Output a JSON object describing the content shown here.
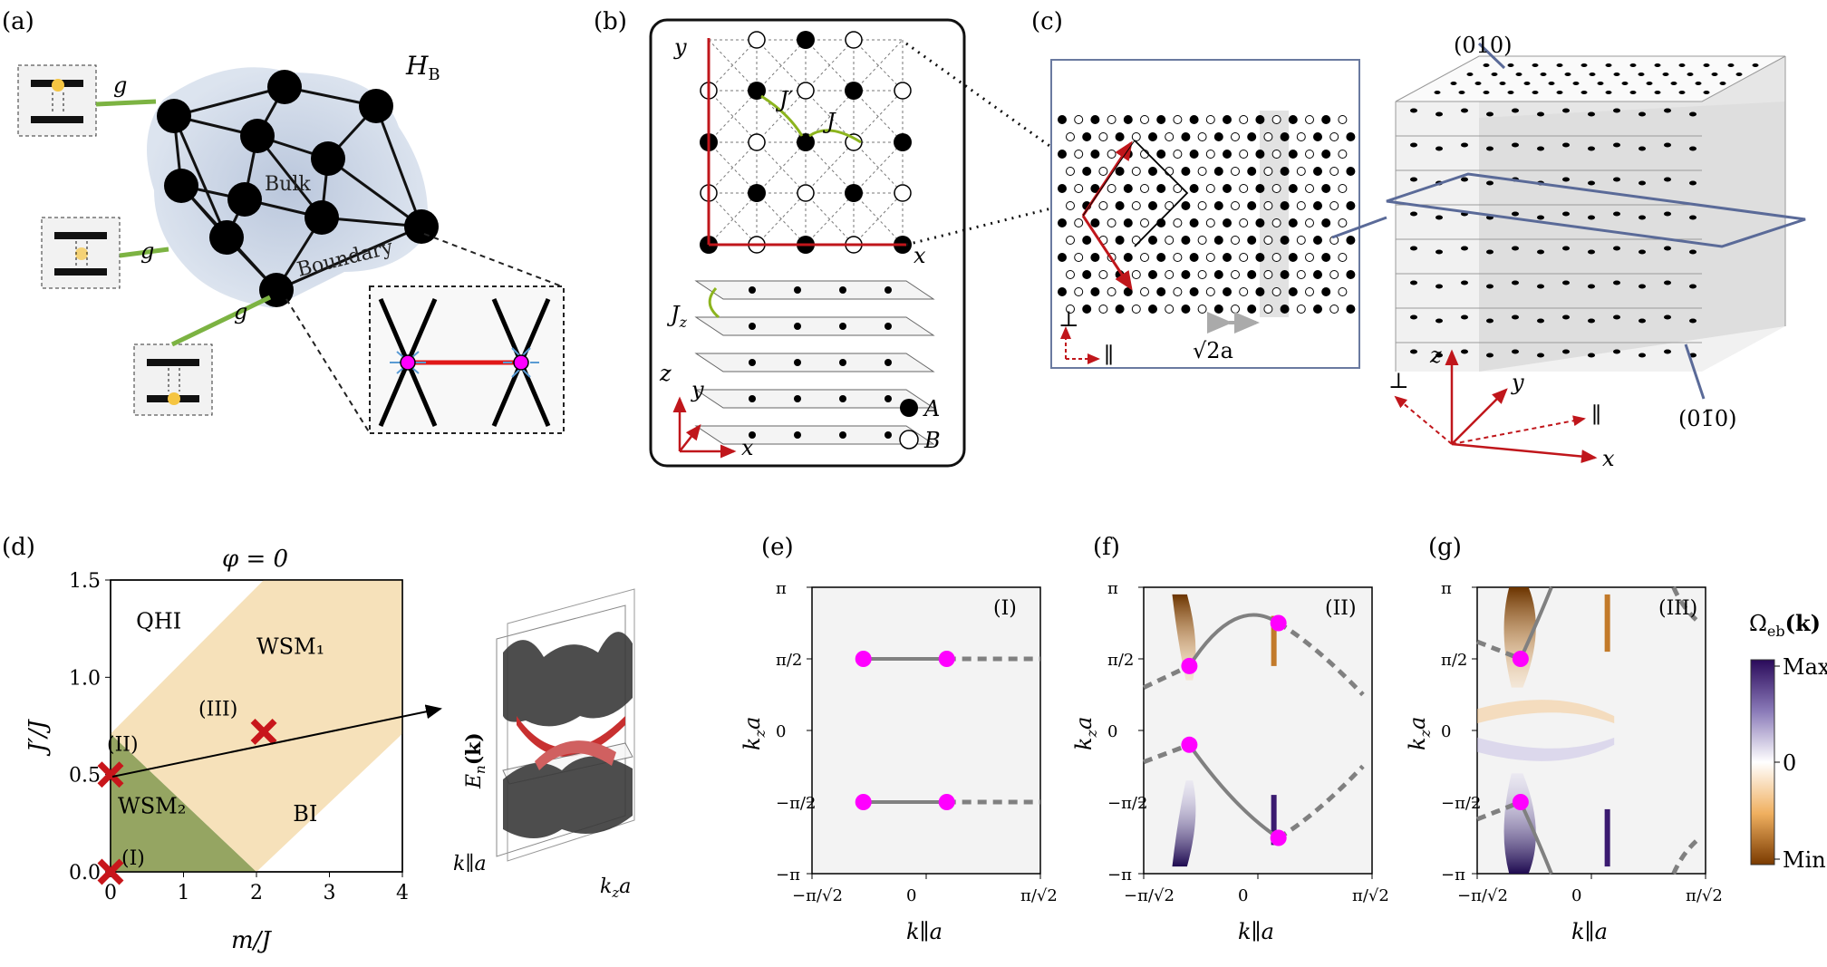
{
  "panels": {
    "a": {
      "label": "(a)",
      "hamiltonian": "H",
      "hamiltonian_sub": "B",
      "bulk": "Bulk",
      "boundary": "Boundary",
      "coupling": "g"
    },
    "b": {
      "label": "(b)",
      "axis_x": "x",
      "axis_y": "y",
      "axis_z": "z",
      "hop_jprime": "J′",
      "hop_j": "J",
      "hop_jz": "J",
      "hop_jz_sub": "z",
      "legend_a": "A",
      "legend_b": "B"
    },
    "c": {
      "label": "(c)",
      "perp": "⊥",
      "para": "∥",
      "spacing": "√2a",
      "surface_top": "(010)",
      "surface_bottom": "(01̄0)",
      "axis_x": "x",
      "axis_y": "y",
      "axis_z": "z"
    },
    "d": {
      "label": "(d)",
      "phi": "φ = 0",
      "xlabel": "m/J",
      "ylabel": "J′/J",
      "regions": [
        "QHI",
        "WSM₁",
        "WSM₂",
        "BI"
      ],
      "points": [
        "(I)",
        "(II)",
        "(III)"
      ],
      "inset_ylabel": "E",
      "inset_ylabel_sub": "n",
      "inset_ylabel_arg": "(k)",
      "inset_x1": "k∥a",
      "inset_x2": "k",
      "inset_x2_sub": "z",
      "inset_x2_tail": "a"
    },
    "e": {
      "label": "(e)",
      "case": "(I)"
    },
    "f": {
      "label": "(f)",
      "case": "(II)"
    },
    "g": {
      "label": "(g)",
      "case": "(III)"
    },
    "band_axes": {
      "ylabel": "k",
      "ylabel_sub": "z",
      "ylabel_tail": "a",
      "xlabel": "k∥a",
      "y_ticks": [
        "π",
        "π/2",
        "0",
        "−π/2",
        "−π"
      ],
      "x_ticks": [
        "−π/√2",
        "0",
        "π/√2"
      ]
    },
    "colorbar": {
      "title": "Ω",
      "title_sub": "eb",
      "title_tail": "(k)",
      "max": "Max",
      "zero": "0",
      "min": "Min"
    }
  },
  "colors": {
    "node": "#000000",
    "weyl_point": "#ff00ff",
    "bulk_glow": "#b8c6dd",
    "coupling": "#7cb342",
    "arrow_red": "#c0161b",
    "wsm1": "#f5deb3",
    "wsm2": "#8fa05a",
    "cross": "#c8161b",
    "fermi_arc": "#808080",
    "berry_pos": "#b06010",
    "berry_neg": "#2a1060"
  },
  "chart_data": {
    "type": "area",
    "title": "φ = 0",
    "xlabel": "m/J",
    "ylabel": "J′/J",
    "xlim": [
      0,
      4
    ],
    "ylim": [
      0,
      1.5
    ],
    "x_ticks": [
      0,
      1,
      2,
      3,
      4
    ],
    "y_ticks": [
      0.0,
      0.5,
      1.0,
      1.5
    ],
    "regions": [
      {
        "name": "WSM₂",
        "polygon": [
          [
            0,
            0
          ],
          [
            2,
            0
          ],
          [
            0,
            0.71
          ]
        ]
      },
      {
        "name": "WSM₁",
        "polygon": [
          [
            0,
            0.71
          ],
          [
            2,
            0
          ],
          [
            4,
            0.71
          ],
          [
            4,
            1.5
          ],
          [
            2.1,
            1.5
          ]
        ]
      },
      {
        "name": "QHI",
        "label_at": [
          0.55,
          1.27
        ]
      },
      {
        "name": "BI",
        "label_at": [
          3.3,
          0.18
        ]
      }
    ],
    "points": [
      {
        "label": "(I)",
        "x": 0,
        "y": 0
      },
      {
        "label": "(II)",
        "x": 0,
        "y": 0.5
      },
      {
        "label": "(III)",
        "x": 2.1,
        "y": 0.72
      }
    ]
  }
}
